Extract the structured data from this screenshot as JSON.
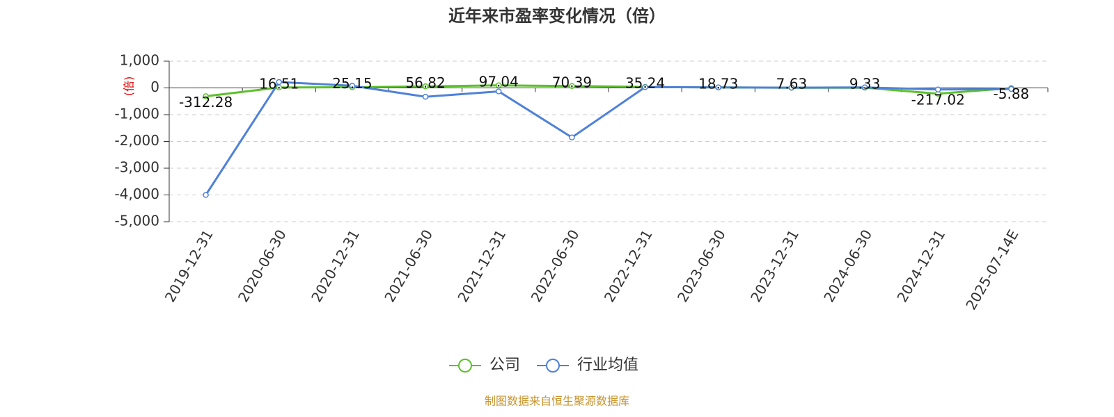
{
  "chart_data": {
    "type": "line",
    "title": "近年来市盈率变化情况（倍）",
    "y_label": "(倍)",
    "categories": [
      "2019-12-31",
      "2020-06-30",
      "2020-12-31",
      "2021-06-30",
      "2021-12-31",
      "2022-06-30",
      "2022-12-31",
      "2023-06-30",
      "2023-12-31",
      "2024-06-30",
      "2024-12-31",
      "2025-07-14E"
    ],
    "series": [
      {
        "name": "公司",
        "color": "#5cc12a",
        "values": [
          -312.28,
          16.51,
          25.15,
          56.82,
          97.04,
          70.39,
          35.24,
          18.73,
          7.63,
          9.33,
          -217.02,
          -5.88
        ],
        "show_labels": true
      },
      {
        "name": "行业均值",
        "color": "#4f81d9",
        "values": [
          -4000,
          220,
          80,
          -330,
          -130,
          -1850,
          30,
          20,
          10,
          20,
          -60,
          -40
        ],
        "show_labels": false
      }
    ],
    "ylim": [
      -5000,
      1000
    ],
    "yticks": [
      {
        "value": 1000,
        "label": "1,000"
      },
      0,
      {
        "value": -1000,
        "label": "-1,000"
      },
      {
        "value": -2000,
        "label": "-2,000"
      },
      {
        "value": -3000,
        "label": "-3,000"
      },
      {
        "value": -4000,
        "label": "-4,000"
      },
      {
        "value": -5000,
        "label": "-5,000"
      }
    ],
    "grid": true,
    "source": "制图数据来自恒生聚源数据库"
  }
}
